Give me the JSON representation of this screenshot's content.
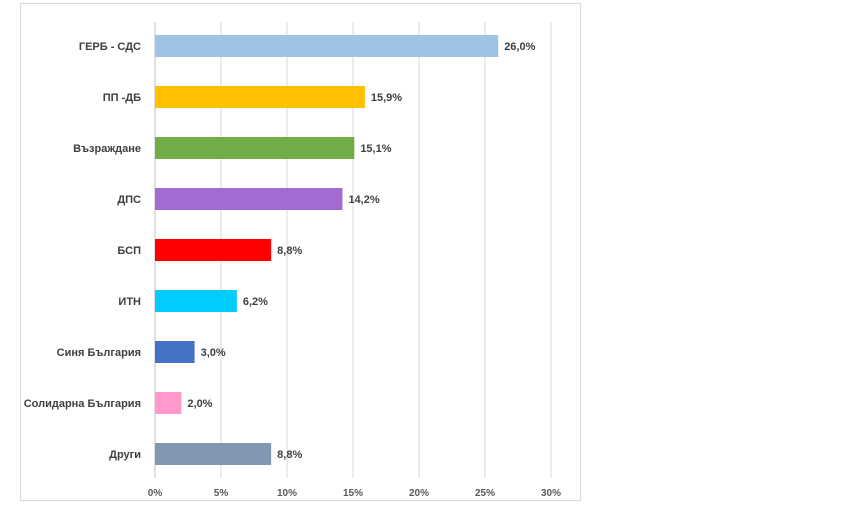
{
  "chart_data": {
    "type": "bar",
    "orientation": "horizontal",
    "categories": [
      "ГЕРБ - СДС",
      "ПП -ДБ",
      "Възраждане",
      "ДПС",
      "БСП",
      "ИТН",
      "Синя България",
      "Солидарна България",
      "Други"
    ],
    "values": [
      26.0,
      15.9,
      15.1,
      14.2,
      8.8,
      6.2,
      3.0,
      2.0,
      8.8
    ],
    "value_labels": [
      "26,0%",
      "15,9%",
      "15,1%",
      "14,2%",
      "8,8%",
      "6,2%",
      "3,0%",
      "2,0%",
      "8,8%"
    ],
    "colors": [
      "#9dc3e6",
      "#ffc000",
      "#70ad47",
      "#a16bd1",
      "#ff0000",
      "#00ccff",
      "#4472c4",
      "#ff99cc",
      "#8497b0"
    ],
    "xlim": [
      0,
      30
    ],
    "x_ticks": [
      0,
      5,
      10,
      15,
      20,
      25,
      30
    ],
    "x_tick_labels": [
      "0%",
      "5%",
      "10%",
      "15%",
      "20%",
      "25%",
      "30%"
    ],
    "grid": "vertical",
    "legend": "none",
    "title": "",
    "xlabel": "",
    "ylabel": ""
  }
}
